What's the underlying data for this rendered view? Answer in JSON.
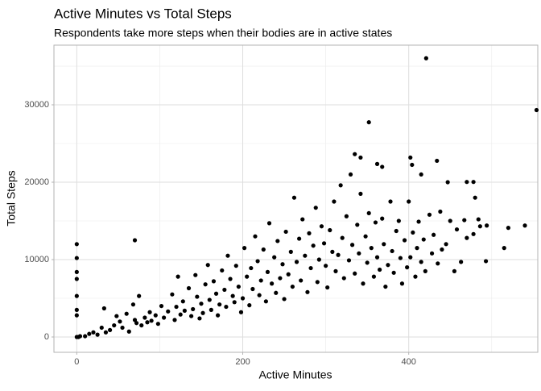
{
  "chart_data": {
    "type": "scatter",
    "title": "Active Minutes vs Total Steps",
    "subtitle": "Respondents take more steps when their bodies are in active states",
    "x_label": "Active Minutes",
    "y_label": "Total Steps",
    "xlim": [
      -27.5,
      555.5
    ],
    "ylim": [
      -1980,
      37710
    ],
    "xticks": [
      0,
      200,
      400
    ],
    "yticks": [
      0,
      10000,
      20000,
      30000
    ],
    "xminor": [
      100,
      300,
      500
    ],
    "yminor": [
      5000,
      15000,
      25000,
      35000
    ],
    "grid": true,
    "series": [
      {
        "color": "#000000",
        "x": [
          421,
          554,
          352,
          335,
          342,
          402,
          404,
          362,
          368,
          434,
          470,
          478,
          480,
          447,
          415,
          0,
          0,
          0,
          0,
          0,
          0,
          0,
          0,
          2,
          4,
          70,
          540,
          520,
          515,
          493,
          484,
          486,
          494,
          458,
          470,
          463,
          455,
          467,
          478,
          10,
          15,
          20,
          25,
          30,
          33,
          35,
          40,
          45,
          48,
          52,
          55,
          60,
          63,
          68,
          70,
          72,
          75,
          78,
          82,
          85,
          88,
          90,
          95,
          98,
          102,
          105,
          110,
          115,
          118,
          120,
          122,
          125,
          128,
          130,
          135,
          138,
          140,
          143,
          145,
          148,
          150,
          152,
          155,
          158,
          160,
          162,
          165,
          168,
          170,
          172,
          175,
          178,
          180,
          182,
          185,
          188,
          190,
          192,
          195,
          198,
          200,
          202,
          205,
          208,
          210,
          212,
          215,
          218,
          220,
          222,
          225,
          228,
          230,
          232,
          235,
          238,
          240,
          242,
          245,
          248,
          250,
          252,
          255,
          258,
          260,
          262,
          265,
          268,
          270,
          272,
          275,
          278,
          280,
          282,
          285,
          288,
          290,
          292,
          295,
          298,
          300,
          302,
          305,
          308,
          310,
          312,
          315,
          318,
          320,
          322,
          325,
          328,
          330,
          332,
          335,
          338,
          340,
          342,
          345,
          348,
          350,
          352,
          355,
          358,
          360,
          362,
          365,
          368,
          370,
          372,
          375,
          378,
          380,
          382,
          385,
          388,
          390,
          392,
          395,
          398,
          400,
          402,
          405,
          408,
          410,
          412,
          415,
          418,
          420,
          425,
          428,
          430,
          435,
          438,
          440,
          445,
          450
        ],
        "y": [
          36019,
          29326,
          27745,
          23629,
          23186,
          23186,
          22244,
          22359,
          21983,
          22770,
          20031,
          20031,
          18000,
          20000,
          21000,
          12000,
          10200,
          8400,
          7500,
          5300,
          3500,
          2800,
          0,
          0,
          100,
          12500,
          14400,
          14100,
          11500,
          9800,
          15200,
          14300,
          14400,
          13900,
          12800,
          9700,
          8500,
          15100,
          13300,
          100,
          400,
          600,
          300,
          1200,
          3700,
          600,
          900,
          1500,
          2700,
          2000,
          1200,
          3000,
          700,
          4200,
          2200,
          1800,
          5300,
          1500,
          2500,
          1900,
          3200,
          2100,
          2800,
          1700,
          4000,
          2500,
          3300,
          5500,
          2200,
          3900,
          7800,
          2900,
          4600,
          3400,
          6300,
          2700,
          3600,
          8000,
          5200,
          2400,
          4300,
          3100,
          6800,
          9300,
          4800,
          3500,
          7200,
          5600,
          2800,
          4200,
          8600,
          6100,
          3900,
          10500,
          7500,
          5300,
          4500,
          9200,
          6500,
          3200,
          5000,
          11500,
          7800,
          4100,
          8900,
          6200,
          13000,
          9800,
          5400,
          7300,
          11300,
          4600,
          8400,
          14700,
          6900,
          10300,
          5700,
          12400,
          7600,
          9400,
          4900,
          13600,
          8100,
          11000,
          6500,
          18000,
          9700,
          12700,
          7300,
          15200,
          10500,
          5800,
          13400,
          8900,
          11800,
          16700,
          7100,
          10000,
          14300,
          12100,
          9200,
          6400,
          13800,
          11000,
          17500,
          8500,
          10600,
          19600,
          12800,
          7600,
          15600,
          9900,
          21000,
          11900,
          8200,
          14500,
          10800,
          18500,
          6900,
          13000,
          9600,
          16000,
          11500,
          7800,
          14800,
          10300,
          8700,
          15300,
          12000,
          6500,
          9300,
          17500,
          11100,
          8300,
          13700,
          15000,
          10200,
          6900,
          12500,
          9000,
          17500,
          10300,
          13500,
          7800,
          11500,
          14900,
          9700,
          12600,
          8500,
          15800,
          10800,
          13200,
          9500,
          16200,
          11300,
          12000,
          15000
        ]
      }
    ]
  }
}
